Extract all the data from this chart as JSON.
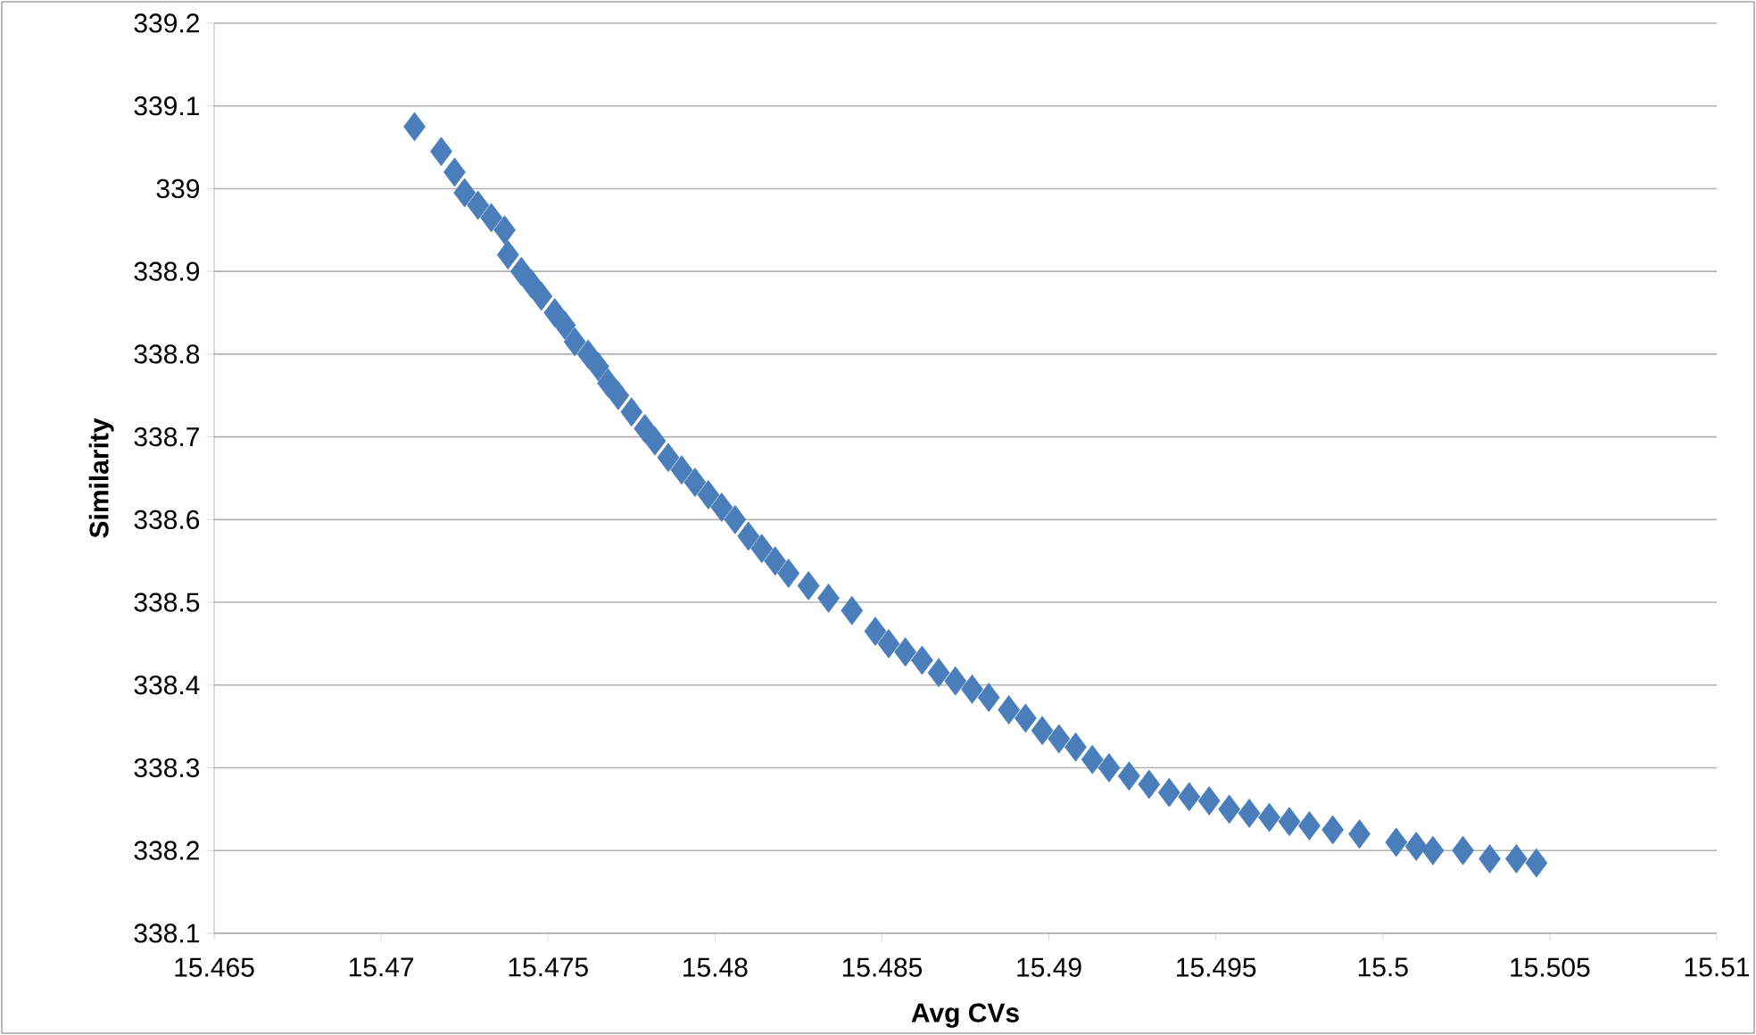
{
  "chart_data": {
    "type": "scatter",
    "xlabel": "Avg CVs",
    "ylabel": "Similarity",
    "xlim": [
      15.465,
      15.51
    ],
    "xticks": [
      15.465,
      15.47,
      15.475,
      15.48,
      15.485,
      15.49,
      15.495,
      15.5,
      15.505,
      15.51
    ],
    "ylim": [
      338.1,
      339.2
    ],
    "yticks": [
      338.1,
      338.2,
      338.3,
      338.4,
      338.5,
      338.6,
      338.7,
      338.8,
      338.9,
      339,
      339.1,
      339.2
    ],
    "grid": "y",
    "marker": "diamond",
    "series": [
      {
        "color": "#4a7ebb",
        "x": [
          15.471,
          15.4718,
          15.4722,
          15.4725,
          15.4729,
          15.4733,
          15.4737,
          15.4738,
          15.4742,
          15.4745,
          15.4748,
          15.4752,
          15.4755,
          15.4758,
          15.4762,
          15.4765,
          15.4768,
          15.4771,
          15.4775,
          15.4779,
          15.4782,
          15.4786,
          15.479,
          15.4794,
          15.4798,
          15.4802,
          15.4806,
          15.481,
          15.4814,
          15.4818,
          15.4822,
          15.4828,
          15.4834,
          15.4841,
          15.4848,
          15.4852,
          15.4857,
          15.4862,
          15.4867,
          15.4872,
          15.4877,
          15.4882,
          15.4888,
          15.4893,
          15.4898,
          15.4903,
          15.4908,
          15.4913,
          15.4918,
          15.4924,
          15.493,
          15.4936,
          15.4942,
          15.4948,
          15.4954,
          15.496,
          15.4966,
          15.4972,
          15.4978,
          15.4985,
          15.4993,
          15.5004,
          15.501,
          15.5015,
          15.5024,
          15.5032,
          15.504,
          15.5046
        ],
        "values": [
          339.075,
          339.045,
          339.02,
          338.995,
          338.98,
          338.965,
          338.95,
          338.92,
          338.9,
          338.885,
          338.87,
          338.85,
          338.835,
          338.815,
          338.8,
          338.785,
          338.765,
          338.75,
          338.73,
          338.71,
          338.695,
          338.675,
          338.66,
          338.645,
          338.63,
          338.615,
          338.6,
          338.58,
          338.565,
          338.55,
          338.535,
          338.52,
          338.505,
          338.49,
          338.465,
          338.45,
          338.44,
          338.43,
          338.415,
          338.405,
          338.395,
          338.385,
          338.37,
          338.36,
          338.345,
          338.335,
          338.325,
          338.31,
          338.3,
          338.29,
          338.28,
          338.27,
          338.265,
          338.26,
          338.25,
          338.245,
          338.24,
          338.235,
          338.23,
          338.225,
          338.22,
          338.21,
          338.205,
          338.2,
          338.2,
          338.19,
          338.19,
          338.185
        ]
      }
    ]
  }
}
